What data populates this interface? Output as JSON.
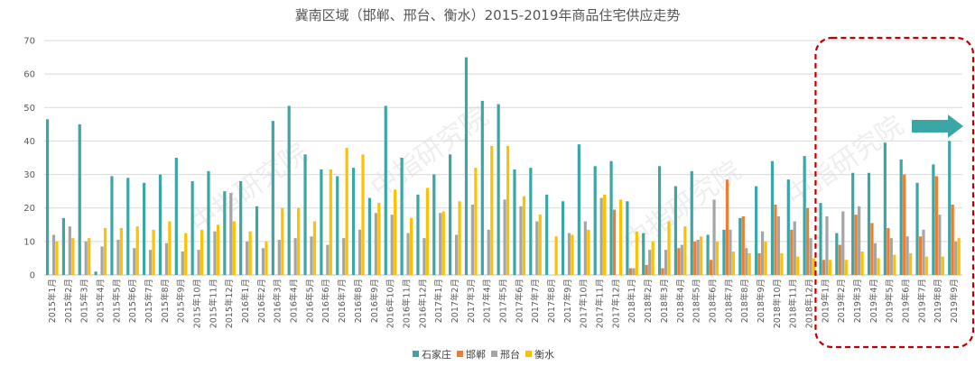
{
  "chart_data": {
    "type": "bar",
    "title": "冀南区域（邯郸、邢台、衡水）2015-2019年商品住宅供应走势",
    "xlabel": "",
    "ylabel": "",
    "ylim": [
      0,
      70
    ],
    "yticks": [
      0,
      10,
      20,
      30,
      40,
      50,
      60,
      70
    ],
    "grid": true,
    "legend_position": "bottom",
    "watermark": "中指研究院",
    "categories": [
      "2015年1月",
      "2015年2月",
      "2015年3月",
      "2015年4月",
      "2015年5月",
      "2015年6月",
      "2015年7月",
      "2015年8月",
      "2015年9月",
      "2015年10月",
      "2015年11月",
      "2015年12月",
      "2016年1月",
      "2016年2月",
      "2016年3月",
      "2016年4月",
      "2016年5月",
      "2016年6月",
      "2016年7月",
      "2016年8月",
      "2016年9月",
      "2016年10月",
      "2016年11月",
      "2016年12月",
      "2017年1月",
      "2017年2月",
      "2017年3月",
      "2017年4月",
      "2017年5月",
      "2017年6月",
      "2017年7月",
      "2017年8月",
      "2017年9月",
      "2017年10月",
      "2017年11月",
      "2017年12月",
      "2018年1月",
      "2018年2月",
      "2018年3月",
      "2018年4月",
      "2018年5月",
      "2018年6月",
      "2018年7月",
      "2018年8月",
      "2018年9月",
      "2018年10月",
      "2018年11月",
      "2018年12月",
      "2019年1月",
      "2019年2月",
      "2019年3月",
      "2019年4月",
      "2019年5月",
      "2019年6月",
      "2019年7月",
      "2019年8月",
      "2019年9月"
    ],
    "series": [
      {
        "name": "石家庄",
        "color": "#3aa6a6",
        "values": [
          46.5,
          17,
          45,
          1,
          29.5,
          29,
          27.5,
          30,
          35,
          28,
          31,
          25,
          28,
          20.5,
          46,
          50.5,
          36,
          31.5,
          29.5,
          32,
          23,
          50.5,
          35,
          24,
          30,
          36,
          65,
          52,
          51,
          31.5,
          32,
          24,
          22,
          39,
          32.5,
          34,
          22,
          12.5,
          32.5,
          26.5,
          31,
          12,
          13.5,
          17,
          26.5,
          34,
          28.5,
          35.5,
          21.5,
          12.5,
          30.5,
          30.5,
          39.5,
          34.5,
          27.5,
          33,
          40
        ]
      },
      {
        "name": "邯郸",
        "color": "#ed7d31",
        "values": [
          0,
          0,
          0,
          0,
          0,
          0,
          0,
          0,
          0,
          0,
          0,
          0,
          0,
          0,
          0,
          0,
          0,
          0,
          0,
          0,
          0,
          0,
          0,
          0,
          0,
          0,
          0,
          0,
          0,
          0,
          0,
          0,
          0,
          0,
          0,
          19.5,
          2,
          3,
          2,
          8,
          10,
          4.5,
          28.5,
          17.5,
          6.5,
          21,
          13.5,
          20,
          4.5,
          9,
          18,
          15.5,
          14,
          30,
          11.5,
          29.5,
          21
        ]
      },
      {
        "name": "邢台",
        "color": "#a5a5a5",
        "values": [
          12,
          14.5,
          10,
          8.5,
          10.5,
          8,
          7.5,
          9.5,
          7,
          7.5,
          13,
          24.5,
          10,
          8,
          10.5,
          11,
          11.5,
          9,
          11,
          13.5,
          18.5,
          18,
          12.5,
          11,
          18.5,
          12,
          21,
          13.5,
          22.5,
          20.5,
          16,
          0,
          12.5,
          16,
          23,
          0,
          2,
          7.5,
          7.5,
          9,
          10.5,
          22.5,
          13.5,
          8,
          13,
          17.5,
          16,
          11,
          17.5,
          19,
          20.5,
          9.5,
          11,
          11.5,
          13.5,
          18,
          10
        ]
      },
      {
        "name": "衡水",
        "color": "#ffc000",
        "values": [
          10,
          11,
          11,
          14,
          14,
          14.5,
          13.5,
          16,
          12.5,
          13.5,
          15,
          16,
          13,
          10,
          20,
          20,
          16,
          31.5,
          38,
          36,
          21.5,
          25.5,
          17,
          26,
          19,
          22,
          32,
          38.5,
          38.5,
          23.5,
          18,
          11.5,
          12,
          13.5,
          24,
          22.5,
          13,
          10,
          16,
          14.5,
          11.5,
          10,
          7,
          6.5,
          10,
          6.5,
          5.5,
          5,
          4.5,
          4.5,
          7,
          5,
          6,
          6.5,
          5.5,
          5.5,
          11
        ]
      }
    ],
    "highlight": {
      "from_category": "2019年1月",
      "to_category": "2019年9月",
      "color": "#c00000",
      "arrow_color": "#3aa6a6"
    }
  }
}
